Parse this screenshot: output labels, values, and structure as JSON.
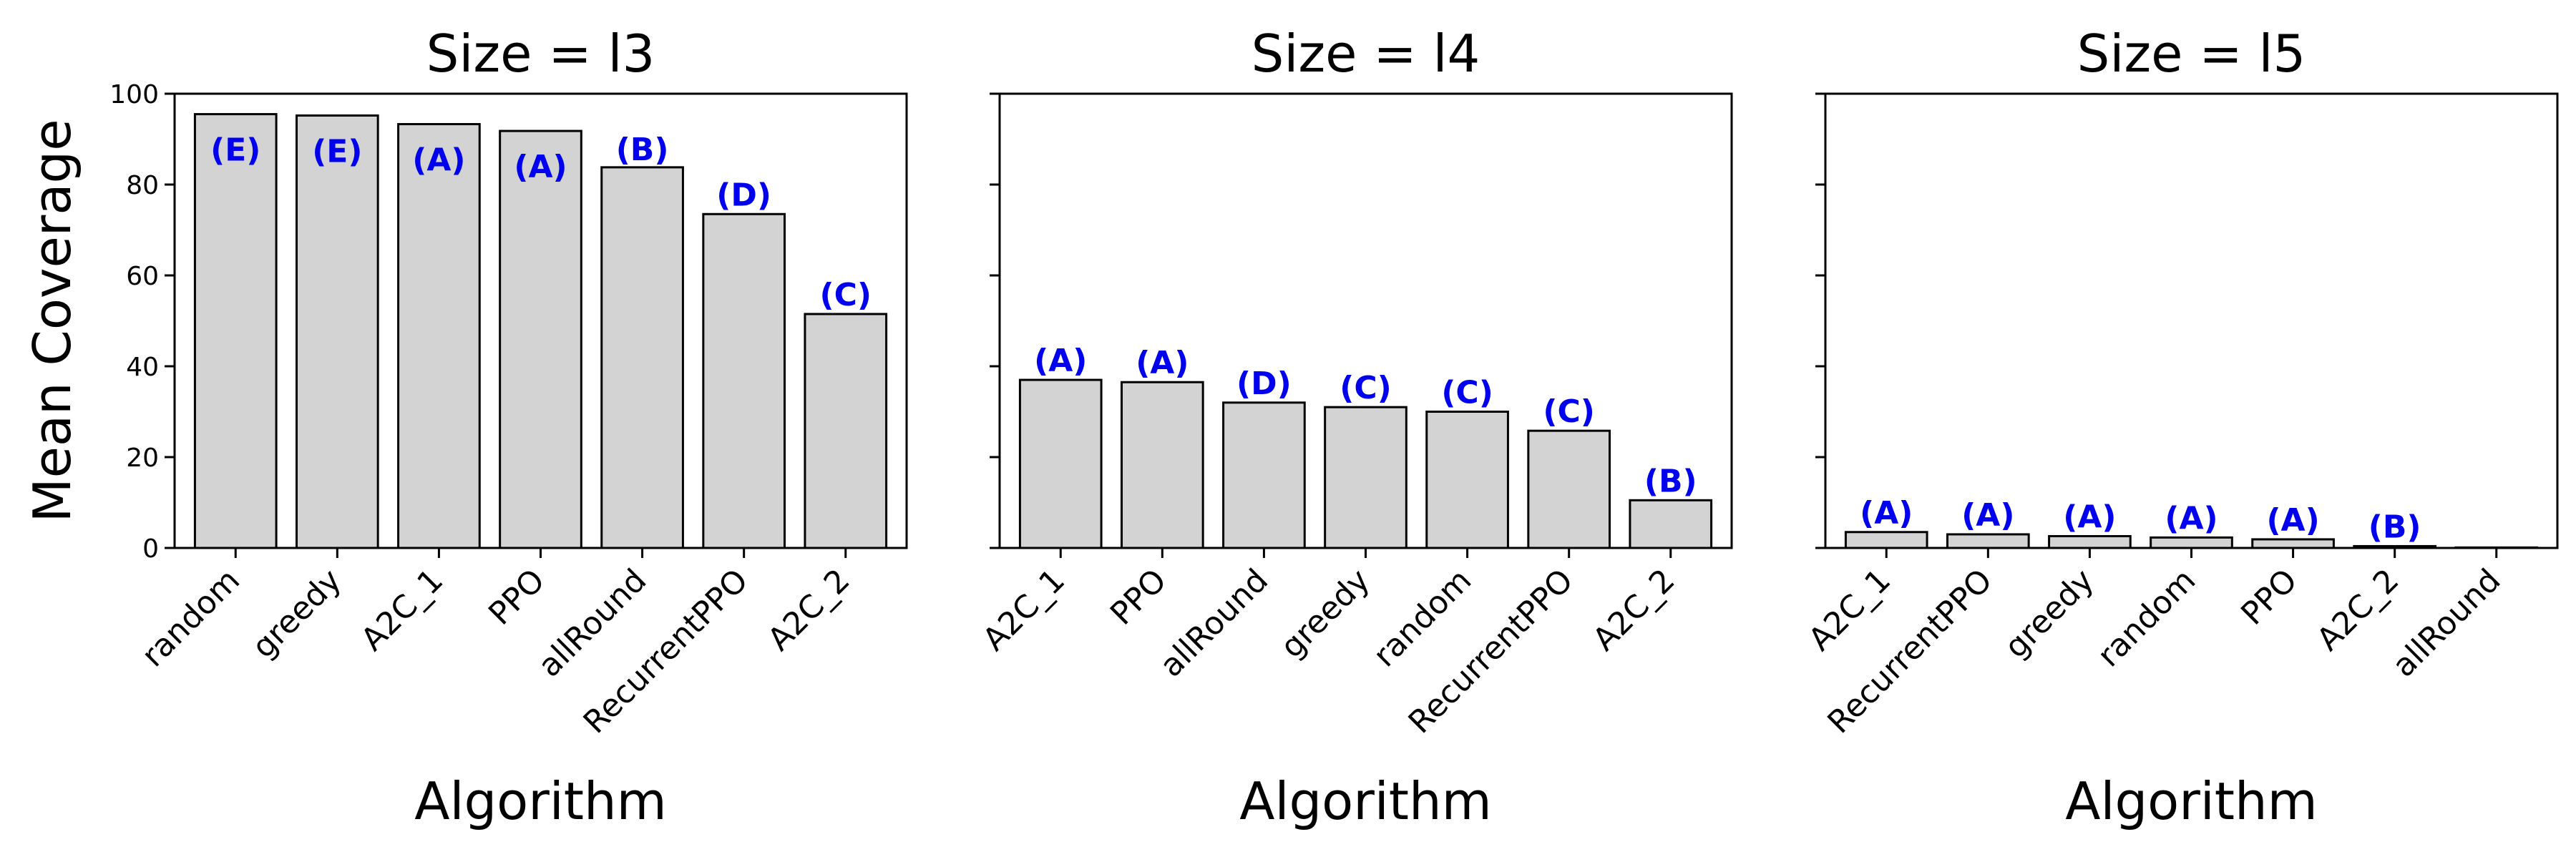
{
  "chart_data": {
    "type": "bar",
    "ylabel": "Mean Coverage",
    "xlabel": "Algorithm",
    "ylim": [
      0,
      100
    ],
    "yticks": [
      0,
      20,
      40,
      60,
      80,
      100
    ],
    "bar_color": "#d3d3d3",
    "label_color": "#0000ee",
    "grid": false,
    "panels": [
      {
        "title": "Size = l3",
        "categories": [
          "random",
          "greedy",
          "A2C_1",
          "PPO",
          "allRound",
          "RecurrentPPO",
          "A2C_2"
        ],
        "values": [
          95.5,
          95.2,
          93.3,
          91.8,
          83.8,
          73.5,
          51.5
        ],
        "groups": [
          "(E)",
          "(E)",
          "(A)",
          "(A)",
          "(B)",
          "(D)",
          "(C)"
        ]
      },
      {
        "title": "Size = l4",
        "categories": [
          "A2C_1",
          "PPO",
          "allRound",
          "greedy",
          "random",
          "RecurrentPPO",
          "A2C_2"
        ],
        "values": [
          37.0,
          36.5,
          32.0,
          31.0,
          30.0,
          25.8,
          10.5
        ],
        "groups": [
          "(A)",
          "(A)",
          "(D)",
          "(C)",
          "(C)",
          "(C)",
          "(B)"
        ]
      },
      {
        "title": "Size = l5",
        "categories": [
          "A2C_1",
          "RecurrentPPO",
          "greedy",
          "random",
          "PPO",
          "A2C_2",
          "allRound"
        ],
        "values": [
          3.5,
          3.0,
          2.6,
          2.3,
          1.9,
          0.4,
          0.1
        ],
        "groups": [
          "(A)",
          "(A)",
          "(A)",
          "(A)",
          "(A)",
          "(B)",
          ""
        ]
      }
    ]
  }
}
